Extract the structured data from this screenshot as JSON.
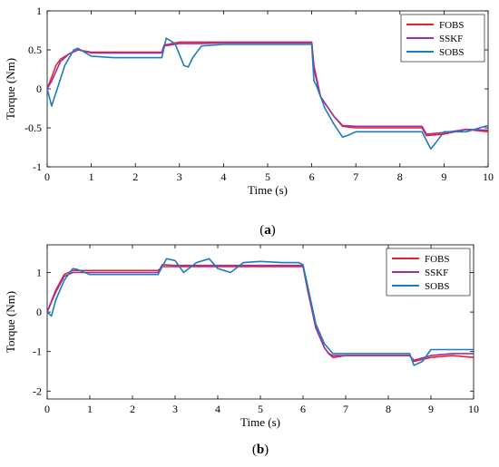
{
  "colors": {
    "FOBS": "#e8222a",
    "SSKF": "#9b30a8",
    "SOBS": "#1f7bbf"
  },
  "chart_data": [
    {
      "type": "line",
      "caption": "a",
      "xlabel": "Time (s)",
      "ylabel": "Torque (Nm)",
      "xlim": [
        0,
        10
      ],
      "ylim": [
        -1,
        1
      ],
      "xticks": [
        0,
        1,
        2,
        3,
        4,
        5,
        6,
        7,
        8,
        9,
        10
      ],
      "yticks": [
        -1,
        -0.5,
        0,
        0.5,
        1
      ],
      "ytick_labels": [
        "-1",
        "-0.5",
        "0",
        "0.5",
        "1"
      ],
      "legend_position": "top-right",
      "grid": false,
      "series": [
        {
          "name": "FOBS",
          "x": [
            0,
            0.1,
            0.2,
            0.3,
            0.5,
            0.7,
            1.0,
            1.5,
            2.0,
            2.6,
            2.65,
            3.0,
            3.5,
            4.0,
            5.0,
            6.0,
            6.05,
            6.2,
            6.5,
            6.7,
            7.0,
            8.0,
            8.5,
            8.6,
            9.0,
            9.5,
            10
          ],
          "y": [
            0,
            0.15,
            0.3,
            0.38,
            0.45,
            0.5,
            0.47,
            0.47,
            0.47,
            0.47,
            0.56,
            0.6,
            0.6,
            0.6,
            0.6,
            0.6,
            0.3,
            -0.1,
            -0.35,
            -0.48,
            -0.5,
            -0.5,
            -0.5,
            -0.6,
            -0.58,
            -0.52,
            -0.55
          ]
        },
        {
          "name": "SSKF",
          "x": [
            0,
            0.1,
            0.3,
            0.5,
            0.7,
            1.0,
            1.5,
            2.0,
            2.6,
            2.65,
            3.0,
            3.5,
            4.0,
            5.0,
            6.0,
            6.05,
            6.2,
            6.5,
            6.7,
            7.0,
            8.0,
            8.5,
            8.6,
            9.0,
            9.5,
            10
          ],
          "y": [
            0,
            0.1,
            0.35,
            0.45,
            0.5,
            0.46,
            0.46,
            0.46,
            0.46,
            0.55,
            0.58,
            0.58,
            0.59,
            0.59,
            0.59,
            0.25,
            -0.1,
            -0.35,
            -0.47,
            -0.48,
            -0.48,
            -0.48,
            -0.58,
            -0.56,
            -0.52,
            -0.53
          ]
        },
        {
          "name": "SOBS",
          "x": [
            0,
            0.1,
            0.2,
            0.4,
            0.6,
            0.7,
            1.0,
            1.5,
            2.0,
            2.6,
            2.7,
            2.9,
            3.1,
            3.2,
            3.3,
            3.5,
            4.0,
            5.0,
            6.0,
            6.05,
            6.1,
            6.3,
            6.5,
            6.7,
            6.8,
            7.0,
            8.0,
            8.5,
            8.7,
            8.8,
            9.0,
            9.5,
            10
          ],
          "y": [
            0,
            -0.22,
            -0.05,
            0.3,
            0.5,
            0.52,
            0.42,
            0.4,
            0.4,
            0.4,
            0.65,
            0.58,
            0.3,
            0.28,
            0.4,
            0.55,
            0.57,
            0.57,
            0.57,
            0.1,
            0.05,
            -0.25,
            -0.45,
            -0.62,
            -0.6,
            -0.55,
            -0.55,
            -0.55,
            -0.77,
            -0.7,
            -0.55,
            -0.55,
            -0.47
          ]
        }
      ]
    },
    {
      "type": "line",
      "caption": "b",
      "xlabel": "Time (s)",
      "ylabel": "Torque (Nm)",
      "xlim": [
        0,
        10
      ],
      "ylim": [
        -2.2,
        1.7
      ],
      "xticks": [
        0,
        1,
        2,
        3,
        4,
        5,
        6,
        7,
        8,
        9,
        10
      ],
      "yticks": [
        -2,
        -1,
        0,
        1
      ],
      "ytick_labels": [
        "-2",
        "-1",
        "0",
        "1"
      ],
      "legend_position": "top-right",
      "grid": false,
      "series": [
        {
          "name": "FOBS",
          "x": [
            0,
            0.2,
            0.4,
            0.6,
            1.0,
            1.5,
            2.0,
            2.5,
            2.6,
            2.7,
            3.0,
            3.5,
            4.0,
            5.0,
            6.0,
            6.1,
            6.3,
            6.5,
            6.6,
            6.7,
            7.0,
            8.0,
            8.5,
            8.6,
            9.0,
            9.5,
            10
          ],
          "y": [
            0,
            0.55,
            0.95,
            1.05,
            1.05,
            1.05,
            1.05,
            1.05,
            1.05,
            1.15,
            1.15,
            1.15,
            1.15,
            1.15,
            1.15,
            0.6,
            -0.4,
            -0.9,
            -1.05,
            -1.15,
            -1.1,
            -1.1,
            -1.1,
            -1.25,
            -1.15,
            -1.1,
            -1.15
          ]
        },
        {
          "name": "SSKF",
          "x": [
            0,
            0.2,
            0.4,
            0.6,
            1.0,
            1.5,
            2.0,
            2.5,
            2.6,
            2.7,
            3.0,
            3.5,
            4.0,
            5.0,
            6.0,
            6.1,
            6.3,
            6.5,
            6.6,
            6.7,
            7.0,
            8.0,
            8.5,
            8.6,
            9.0,
            9.5,
            10
          ],
          "y": [
            0,
            0.5,
            0.9,
            1.0,
            1.0,
            1.0,
            1.0,
            1.0,
            1.0,
            1.2,
            1.18,
            1.18,
            1.18,
            1.18,
            1.18,
            0.6,
            -0.4,
            -0.9,
            -1.05,
            -1.1,
            -1.1,
            -1.1,
            -1.1,
            -1.22,
            -1.1,
            -1.05,
            -1.05
          ]
        },
        {
          "name": "SOBS",
          "x": [
            0,
            0.1,
            0.2,
            0.4,
            0.6,
            0.7,
            1.0,
            1.5,
            2.0,
            2.5,
            2.6,
            2.8,
            3.0,
            3.2,
            3.5,
            3.8,
            4.0,
            4.3,
            4.6,
            5.0,
            5.5,
            5.9,
            6.0,
            6.1,
            6.3,
            6.5,
            6.7,
            7.0,
            8.0,
            8.5,
            8.6,
            8.8,
            9.0,
            9.5,
            10
          ],
          "y": [
            0,
            -0.1,
            0.3,
            0.8,
            1.1,
            1.08,
            0.95,
            0.95,
            0.95,
            0.95,
            0.95,
            1.35,
            1.3,
            1.0,
            1.25,
            1.35,
            1.1,
            1.0,
            1.25,
            1.28,
            1.25,
            1.25,
            1.2,
            0.7,
            -0.3,
            -0.8,
            -1.05,
            -1.05,
            -1.05,
            -1.05,
            -1.35,
            -1.25,
            -0.95,
            -0.95,
            -0.95
          ]
        }
      ]
    }
  ]
}
